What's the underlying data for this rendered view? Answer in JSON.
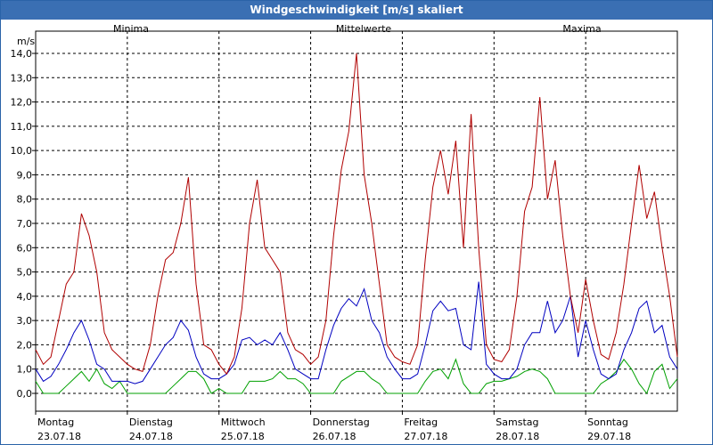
{
  "window": {
    "title": "Windgeschwindigkeit [m/s] skaliert"
  },
  "chart_data": {
    "type": "line",
    "title": "Windgeschwindigkeit [m/s] skaliert",
    "ylabel": "m/s",
    "ylim": [
      0,
      14.5
    ],
    "yticks": [
      "0,0",
      "1,0",
      "2,0",
      "3,0",
      "4,0",
      "5,0",
      "6,0",
      "7,0",
      "8,0",
      "9,0",
      "10,0",
      "11,0",
      "12,0",
      "13,0",
      "14,0"
    ],
    "grid": true,
    "days": [
      {
        "name": "Montag",
        "date": "23.07.18"
      },
      {
        "name": "Dienstag",
        "date": "24.07.18"
      },
      {
        "name": "Mittwoch",
        "date": "25.07.18"
      },
      {
        "name": "Donnerstag",
        "date": "26.07.18"
      },
      {
        "name": "Freitag",
        "date": "27.07.18"
      },
      {
        "name": "Samstag",
        "date": "28.07.18"
      },
      {
        "name": "Sonntag",
        "date": "29.07.18"
      }
    ],
    "x_hours_start": 0,
    "x_hours_end": 168,
    "series": [
      {
        "name": "Minima",
        "color": "#00a000",
        "x": [
          0,
          2,
          4,
          6,
          8,
          10,
          12,
          14,
          16,
          18,
          20,
          22,
          24,
          26,
          28,
          30,
          32,
          34,
          36,
          38,
          40,
          42,
          44,
          46,
          48,
          50,
          52,
          54,
          56,
          58,
          60,
          62,
          64,
          66,
          68,
          70,
          72,
          74,
          76,
          78,
          80,
          82,
          84,
          86,
          88,
          90,
          92,
          94,
          96,
          98,
          100,
          102,
          104,
          106,
          108,
          110,
          112,
          114,
          116,
          118,
          120,
          122,
          124,
          126,
          128,
          130,
          132,
          134,
          136,
          138,
          140,
          142,
          144,
          146,
          148,
          150,
          152,
          154,
          156,
          158,
          160,
          162,
          164,
          166,
          168
        ],
        "values": [
          0.5,
          0,
          0,
          0,
          0.3,
          0.6,
          0.9,
          0.5,
          1.0,
          0.4,
          0.2,
          0.5,
          0,
          0,
          0,
          0,
          0,
          0,
          0.3,
          0.6,
          0.9,
          0.9,
          0.6,
          0,
          0.2,
          0,
          0,
          0,
          0.5,
          0.5,
          0.5,
          0.6,
          0.9,
          0.6,
          0.6,
          0.4,
          0,
          0,
          0,
          0,
          0.5,
          0.7,
          0.9,
          0.9,
          0.6,
          0.4,
          0,
          0,
          0,
          0,
          0,
          0.5,
          0.9,
          1.0,
          0.6,
          1.4,
          0.4,
          0,
          0,
          0.4,
          0.5,
          0.5,
          0.6,
          0.7,
          0.9,
          1.0,
          0.9,
          0.6,
          0,
          0,
          0,
          0,
          0,
          0,
          0.4,
          0.6,
          0.9,
          1.4,
          1.0,
          0.4,
          0,
          0.9,
          1.2,
          0.2,
          0.6
        ]
      },
      {
        "name": "Mittelwerte",
        "color": "#0000c0",
        "x": [
          0,
          2,
          4,
          6,
          8,
          10,
          12,
          14,
          16,
          18,
          20,
          22,
          24,
          26,
          28,
          30,
          32,
          34,
          36,
          38,
          40,
          42,
          44,
          46,
          48,
          50,
          52,
          54,
          56,
          58,
          60,
          62,
          64,
          66,
          68,
          70,
          72,
          74,
          76,
          78,
          80,
          82,
          84,
          86,
          88,
          90,
          92,
          94,
          96,
          98,
          100,
          102,
          104,
          106,
          108,
          110,
          112,
          114,
          116,
          118,
          120,
          122,
          124,
          126,
          128,
          130,
          132,
          134,
          136,
          138,
          140,
          142,
          144,
          146,
          148,
          150,
          152,
          154,
          156,
          158,
          160,
          162,
          164,
          166,
          168
        ],
        "values": [
          1.0,
          0.5,
          0.7,
          1.2,
          1.8,
          2.5,
          3.0,
          2.2,
          1.2,
          1.0,
          0.5,
          0.5,
          0.5,
          0.4,
          0.5,
          1.0,
          1.5,
          2.0,
          2.3,
          3.0,
          2.6,
          1.5,
          0.8,
          0.6,
          0.6,
          0.8,
          1.2,
          2.2,
          2.3,
          2.0,
          2.2,
          2.0,
          2.5,
          1.8,
          1.0,
          0.8,
          0.6,
          0.6,
          1.8,
          2.8,
          3.5,
          3.9,
          3.6,
          4.3,
          3.0,
          2.5,
          1.5,
          1.0,
          0.6,
          0.6,
          0.8,
          2.0,
          3.4,
          3.8,
          3.4,
          3.5,
          2.0,
          1.8,
          4.6,
          1.2,
          0.8,
          0.6,
          0.6,
          1.0,
          2.0,
          2.5,
          2.5,
          3.8,
          2.5,
          3.0,
          4.0,
          1.5,
          3.0,
          1.8,
          0.8,
          0.6,
          0.8,
          1.8,
          2.5,
          3.5,
          3.8,
          2.5,
          2.8,
          1.5,
          1.0
        ]
      },
      {
        "name": "Maxima",
        "color": "#b00000",
        "x": [
          0,
          2,
          4,
          6,
          8,
          10,
          12,
          14,
          16,
          18,
          20,
          22,
          24,
          26,
          28,
          30,
          32,
          34,
          36,
          38,
          40,
          42,
          44,
          46,
          48,
          50,
          52,
          54,
          56,
          58,
          60,
          62,
          64,
          66,
          68,
          70,
          72,
          74,
          76,
          78,
          80,
          82,
          84,
          86,
          88,
          90,
          92,
          94,
          96,
          98,
          100,
          102,
          104,
          106,
          108,
          110,
          112,
          114,
          116,
          118,
          120,
          122,
          124,
          126,
          128,
          130,
          132,
          134,
          136,
          138,
          140,
          142,
          144,
          146,
          148,
          150,
          152,
          154,
          156,
          158,
          160,
          162,
          164,
          166,
          168
        ],
        "values": [
          1.8,
          1.2,
          1.5,
          3.0,
          4.5,
          5.0,
          7.4,
          6.5,
          5.0,
          2.5,
          1.8,
          1.5,
          1.2,
          1.0,
          0.9,
          2.0,
          4.0,
          5.5,
          5.8,
          7.0,
          8.9,
          4.5,
          2.0,
          1.8,
          1.2,
          0.8,
          1.5,
          3.5,
          7.0,
          8.8,
          6.0,
          5.5,
          5.0,
          2.5,
          1.8,
          1.6,
          1.2,
          1.5,
          3.0,
          6.5,
          9.2,
          10.8,
          14.0,
          9.0,
          7.0,
          4.5,
          2.0,
          1.5,
          1.3,
          1.2,
          2.0,
          5.5,
          8.5,
          10.0,
          8.2,
          10.4,
          6.0,
          11.5,
          6.0,
          2.0,
          1.4,
          1.3,
          1.8,
          4.0,
          7.5,
          8.5,
          12.2,
          8.0,
          9.6,
          6.5,
          4.0,
          2.5,
          4.7,
          3.0,
          1.6,
          1.4,
          2.5,
          4.5,
          7.0,
          9.4,
          7.2,
          8.3,
          6.0,
          4.0,
          1.5
        ]
      }
    ]
  }
}
